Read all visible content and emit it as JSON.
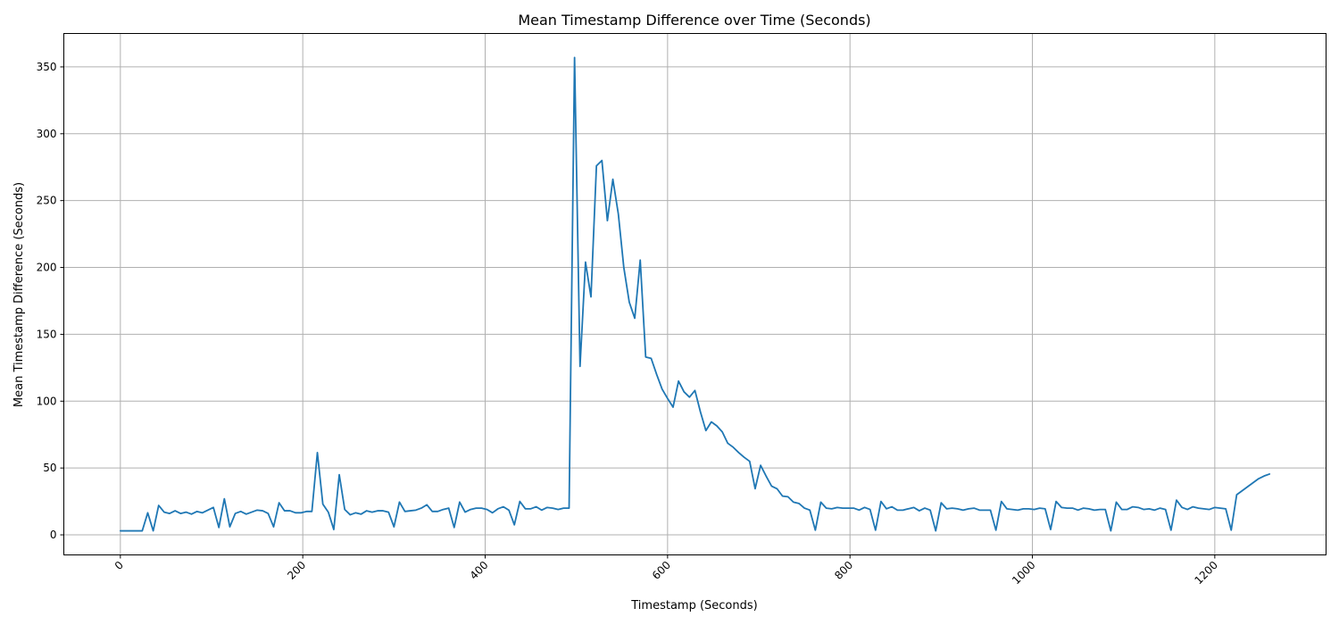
{
  "chart_data": {
    "type": "line",
    "title": "Mean Timestamp Difference over Time (Seconds)",
    "xlabel": "Timestamp (Seconds)",
    "ylabel": "Mean Timestamp Difference (Seconds)",
    "xlim": [
      -62,
      1322
    ],
    "ylim": [
      -15,
      375
    ],
    "xticks": [
      0,
      200,
      400,
      600,
      800,
      1000,
      1200
    ],
    "yticks": [
      0,
      50,
      100,
      150,
      200,
      250,
      300,
      350
    ],
    "xtick_rotation": 45,
    "grid": true,
    "legend": "none",
    "series": [
      {
        "color": "#1f77b4",
        "x": [
          0,
          12,
          18,
          24,
          30,
          36,
          42,
          48,
          54,
          60,
          66,
          72,
          78,
          84,
          90,
          96,
          102,
          108,
          114,
          120,
          126,
          132,
          138,
          144,
          150,
          156,
          162,
          168,
          174,
          180,
          186,
          192,
          198,
          204,
          210,
          216,
          222,
          228,
          234,
          240,
          246,
          252,
          258,
          264,
          270,
          276,
          282,
          288,
          294,
          300,
          306,
          312,
          318,
          324,
          330,
          336,
          342,
          348,
          354,
          360,
          366,
          372,
          378,
          384,
          390,
          396,
          402,
          408,
          414,
          420,
          426,
          432,
          438,
          444,
          450,
          456,
          462,
          468,
          474,
          480,
          486,
          492,
          498,
          504,
          510,
          516,
          522,
          528,
          534,
          540,
          546,
          552,
          558,
          564,
          570,
          576,
          582,
          588,
          594,
          600,
          606,
          612,
          618,
          624,
          630,
          636,
          642,
          648,
          654,
          660,
          666,
          672,
          678,
          684,
          690,
          696,
          702,
          708,
          714,
          720,
          726,
          732,
          738,
          744,
          750,
          756,
          762,
          768,
          774,
          780,
          786,
          792,
          798,
          804,
          810,
          816,
          822,
          828,
          834,
          840,
          846,
          852,
          858,
          864,
          870,
          876,
          882,
          888,
          894,
          900,
          906,
          912,
          918,
          924,
          930,
          936,
          942,
          948,
          954,
          960,
          966,
          972,
          978,
          984,
          990,
          996,
          1002,
          1008,
          1014,
          1020,
          1026,
          1032,
          1038,
          1044,
          1050,
          1056,
          1062,
          1068,
          1074,
          1080,
          1086,
          1092,
          1098,
          1104,
          1110,
          1116,
          1122,
          1128,
          1134,
          1140,
          1146,
          1152,
          1158,
          1164,
          1170,
          1176,
          1182,
          1188,
          1194,
          1200,
          1206,
          1212,
          1218,
          1224,
          1230,
          1236,
          1242,
          1248,
          1254,
          1260
        ],
        "y": [
          3,
          3,
          3,
          3,
          16.5,
          3,
          22,
          17,
          16,
          18,
          16,
          17,
          15.5,
          17.5,
          16.5,
          18.5,
          20.5,
          5.5,
          27,
          6,
          16,
          17.5,
          15.5,
          17,
          18.5,
          18,
          16,
          6,
          24,
          18,
          18,
          16.5,
          16.5,
          17.5,
          17.5,
          61.5,
          23,
          17,
          4,
          45,
          19,
          15,
          16.5,
          15.5,
          18,
          17,
          18,
          18,
          17,
          6,
          24.5,
          17.5,
          18,
          18.5,
          20,
          22.5,
          17.5,
          17.5,
          19,
          20,
          5.5,
          24.5,
          17,
          19,
          20,
          20,
          19,
          16.5,
          19.5,
          21,
          18.5,
          7.5,
          25,
          19.5,
          19.5,
          21,
          18.5,
          20.5,
          20,
          19,
          20,
          20,
          357,
          126,
          204,
          178,
          276,
          280,
          235,
          266,
          240,
          200,
          174,
          162,
          205.5,
          133,
          132,
          120,
          109,
          102,
          95.5,
          115,
          107,
          103,
          108,
          92,
          78,
          84.5,
          81.5,
          77,
          68.5,
          65.5,
          61.5,
          58,
          55,
          34.5,
          52,
          44,
          36.5,
          34.5,
          29,
          28.5,
          24.5,
          23.5,
          20,
          18.5,
          3.5,
          24.5,
          20,
          19.5,
          20.5,
          20,
          20,
          20,
          18.5,
          20.5,
          19,
          3.5,
          25,
          19.5,
          21,
          18.5,
          18.5,
          19.5,
          20.5,
          18,
          20,
          18.5,
          3,
          24,
          19.5,
          20,
          19.5,
          18.5,
          19.5,
          20,
          18.5,
          18.5,
          18.5,
          3.5,
          25,
          19.5,
          19,
          18.5,
          19.5,
          19.5,
          19,
          20,
          19.5,
          4,
          25,
          20.5,
          20,
          20,
          18.5,
          20,
          19.5,
          18.5,
          19,
          19,
          3,
          24.5,
          19,
          19,
          21,
          20.5,
          19,
          19.5,
          18.5,
          20,
          19,
          3.5,
          26,
          20.5,
          19,
          21,
          20,
          19.5,
          19,
          20.5,
          20,
          19.5,
          3.5,
          30,
          33,
          36,
          39,
          42,
          44,
          45.5
        ]
      }
    ]
  }
}
